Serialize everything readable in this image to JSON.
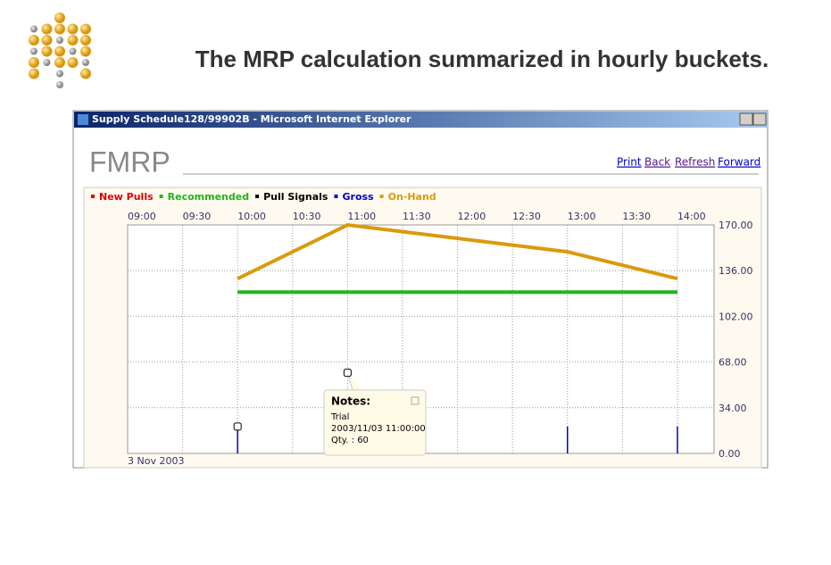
{
  "slide_title": "The MRP calculation summarized in hourly buckets.",
  "window": {
    "title": "Supply Schedule128/99902B - Microsoft Internet Explorer",
    "logo": "FMRP",
    "links": [
      "Print",
      "Back",
      "Refresh",
      "Forward"
    ]
  },
  "chart_data": {
    "type": "line",
    "date_label": "3 Nov 2003",
    "xlim": [
      "09:00",
      "14:20"
    ],
    "xticks": [
      "09:00",
      "09:30",
      "10:00",
      "10:30",
      "11:00",
      "11:30",
      "12:00",
      "12:30",
      "13:00",
      "13:30",
      "14:00"
    ],
    "ylim": [
      0,
      170
    ],
    "yticks": [
      {
        "value": 0,
        "label": "0.00"
      },
      {
        "value": 34,
        "label": "34.00"
      },
      {
        "value": 68,
        "label": "68.00"
      },
      {
        "value": 102,
        "label": "102.00"
      },
      {
        "value": 136,
        "label": "136.00"
      },
      {
        "value": 170,
        "label": "170.00"
      }
    ],
    "grid": true,
    "series": [
      {
        "name": "New Pulls",
        "color": "#e00000",
        "type": "line",
        "x": [],
        "values": []
      },
      {
        "name": "Recommended",
        "color": "#1fb51f",
        "type": "line",
        "x": [
          "10:00",
          "14:00"
        ],
        "values": [
          120,
          120
        ]
      },
      {
        "name": "Pull Signals",
        "color": "#000000",
        "type": "line",
        "x": [],
        "values": []
      },
      {
        "name": "Gross",
        "color": "#0000cc",
        "type": "bar",
        "x": [
          "10:00",
          "13:00",
          "14:00"
        ],
        "values": [
          20,
          20,
          20
        ]
      },
      {
        "name": "On-Hand",
        "color": "#d99a0c",
        "type": "line",
        "x": [
          "10:00",
          "11:00",
          "13:00",
          "14:00"
        ],
        "values": [
          130,
          170,
          150,
          130
        ]
      }
    ],
    "note_markers": {
      "x": [
        "10:00",
        "11:00"
      ],
      "values": [
        20,
        60
      ]
    },
    "note": {
      "title": "Notes:",
      "lines": [
        "Trial",
        "2003/11/03 11:00:00",
        "Qty. : 60"
      ]
    }
  }
}
